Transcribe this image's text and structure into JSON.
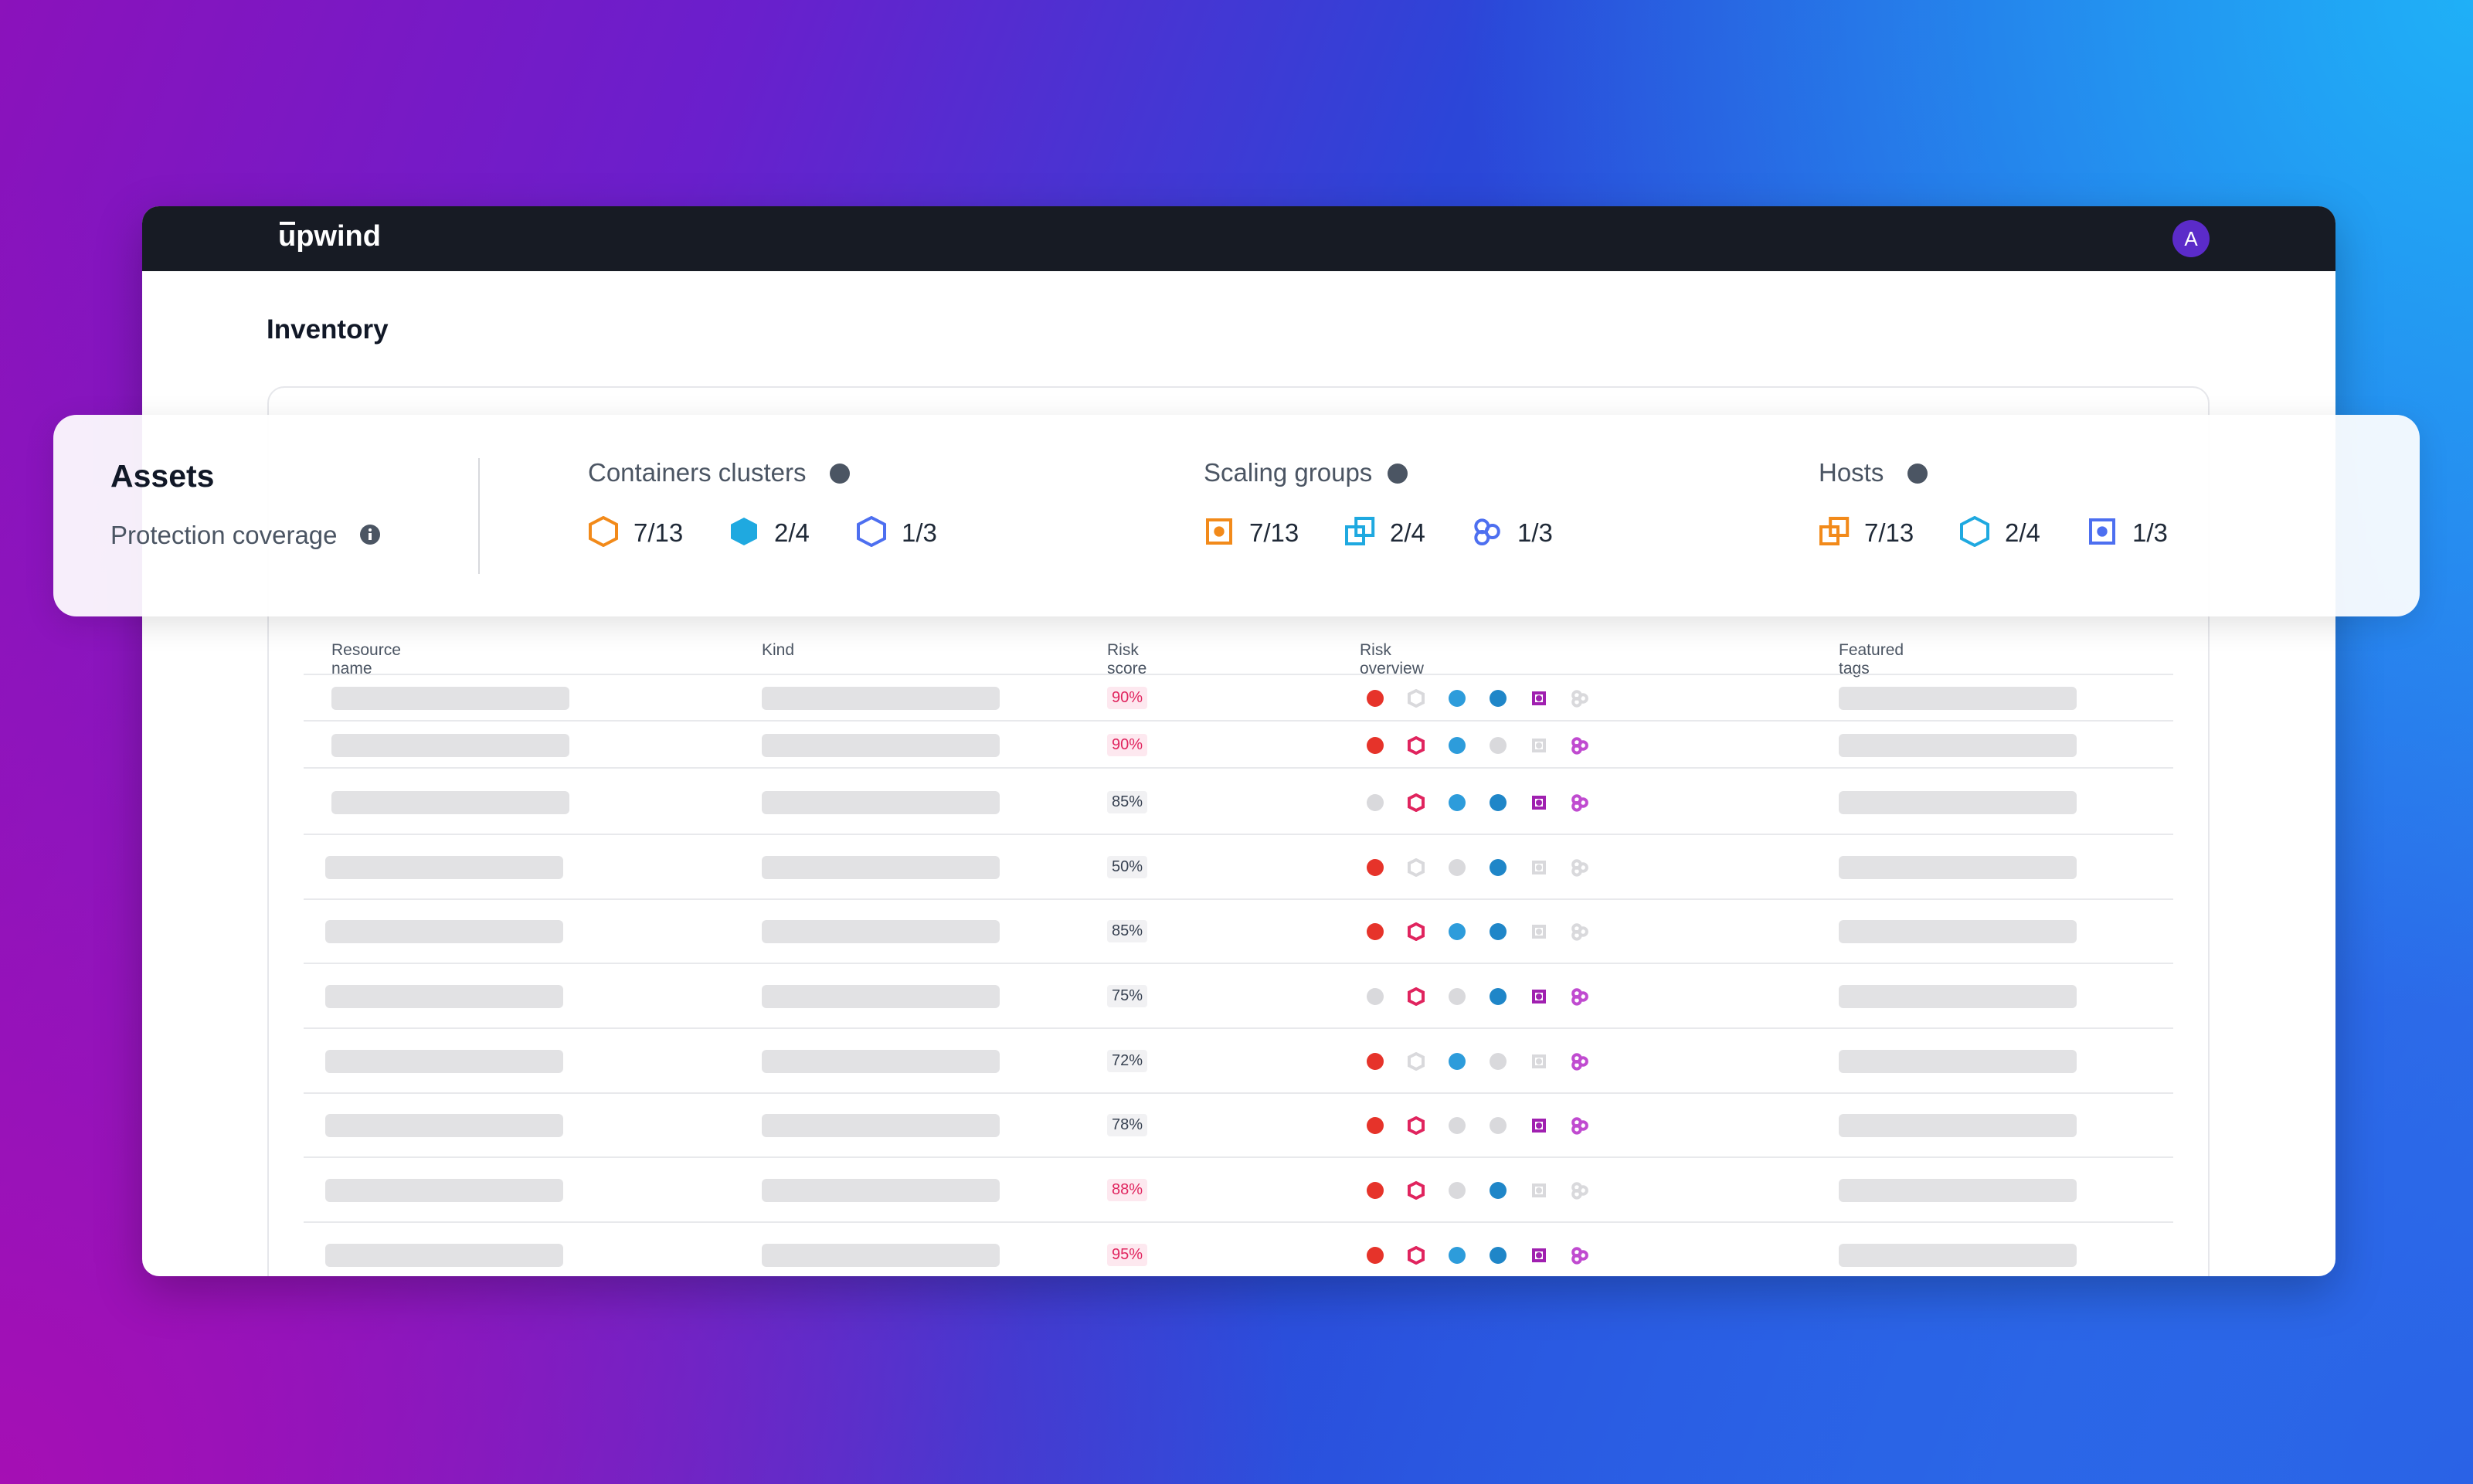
{
  "header": {
    "logo": "upwind",
    "avatar": "A"
  },
  "page": {
    "title": "Inventory"
  },
  "summary": {
    "title": "Assets",
    "subtitle": "Protection coverage",
    "groups": [
      {
        "title": "Containers clusters",
        "counts": [
          "7/13",
          "2/4",
          "1/3"
        ]
      },
      {
        "title": "Scaling groups",
        "counts": [
          "7/13",
          "2/4",
          "1/3"
        ]
      },
      {
        "title": "Hosts",
        "counts": [
          "7/13",
          "2/4",
          "1/3"
        ]
      }
    ]
  },
  "table": {
    "columns": [
      "Resource name",
      "Kind",
      "Risk score",
      "Risk overview",
      "Featured tags"
    ],
    "risk_scores": [
      "90%",
      "90%",
      "85%",
      "50%",
      "85%",
      "75%",
      "72%",
      "78%",
      "88%",
      "95%"
    ]
  }
}
